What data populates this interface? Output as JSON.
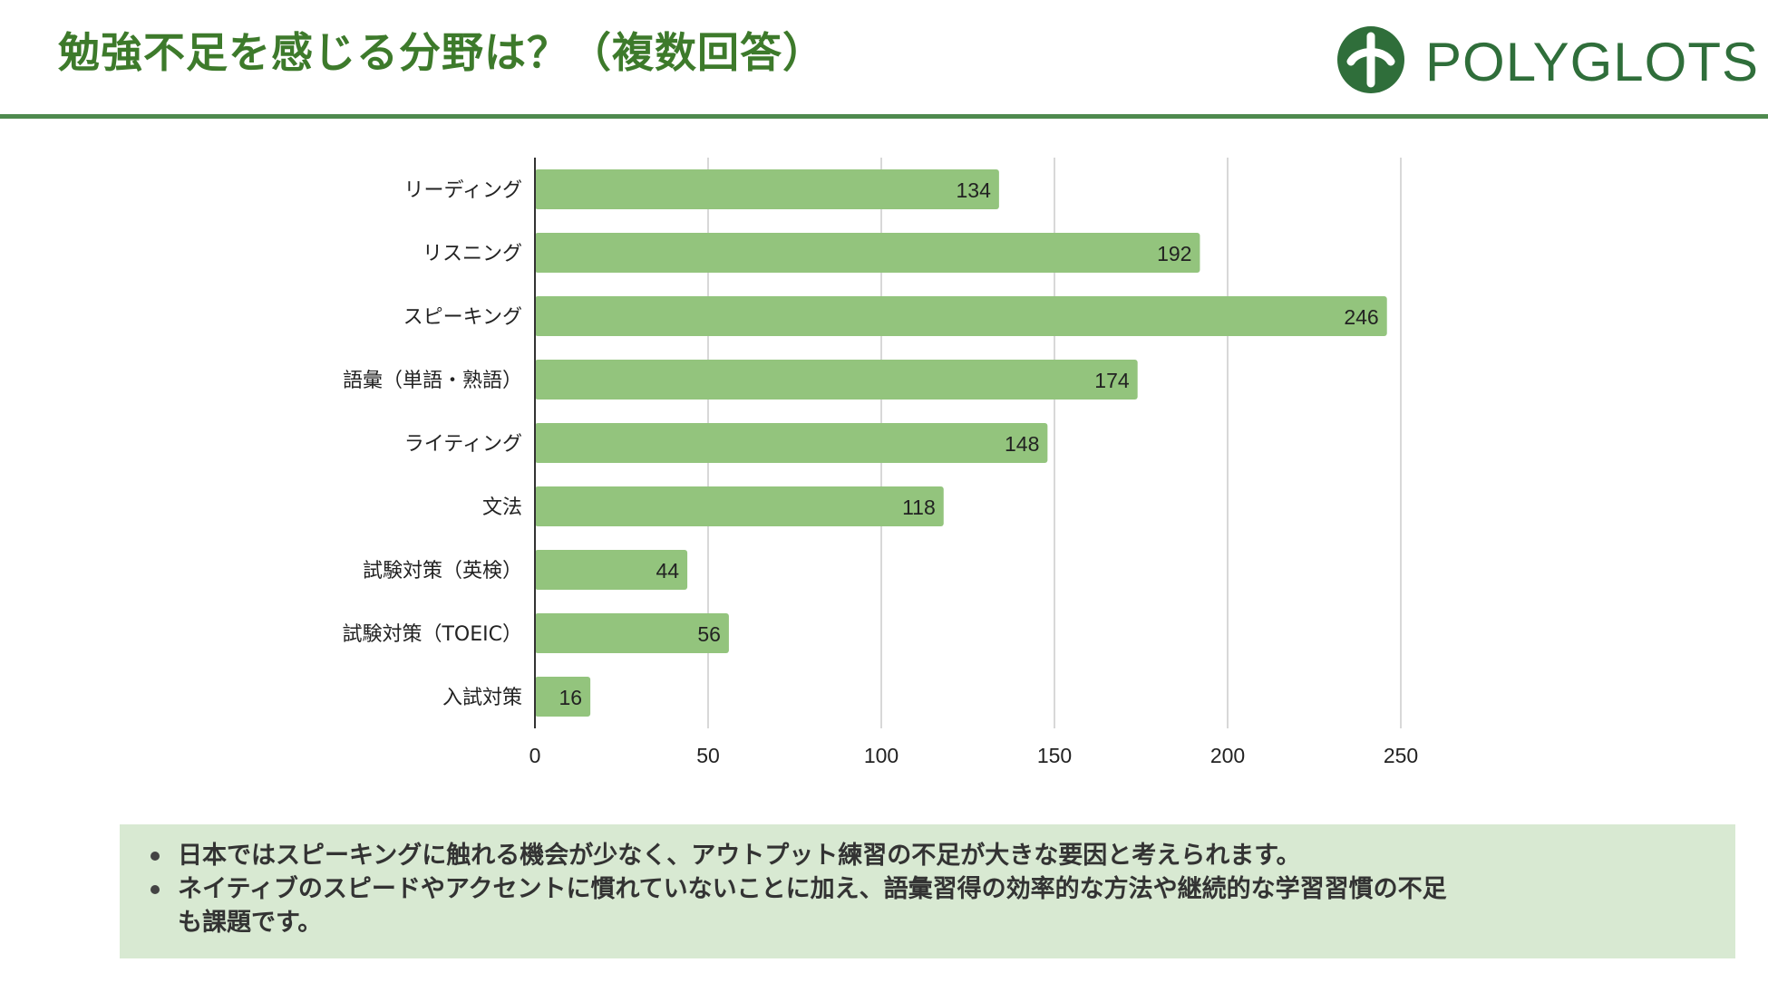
{
  "header": {
    "title": "勉強不足を感じる分野は？（複数回答）",
    "logo_text": "POLYGLOTS"
  },
  "colors": {
    "accent": "#3d7a2b",
    "bar": "#93c47d",
    "rule": "#4e8a4e",
    "note_bg": "#d8e9d2"
  },
  "chart_data": {
    "type": "bar",
    "orientation": "horizontal",
    "categories": [
      "リーディング",
      "リスニング",
      "スピーキング",
      "語彙（単語・熟語）",
      "ライティング",
      "文法",
      "試験対策（英検）",
      "試験対策（TOEIC）",
      "入試対策"
    ],
    "values": [
      134,
      192,
      246,
      174,
      148,
      118,
      44,
      56,
      16
    ],
    "xlim": [
      0,
      250
    ],
    "xticks": [
      0,
      50,
      100,
      150,
      200,
      250
    ],
    "grid": true,
    "data_labels": true
  },
  "notes": [
    "日本ではスピーキングに触れる機会が少なく、アウトプット練習の不足が大きな要因と考えられます。",
    "ネイティブのスピードやアクセントに慣れていないことに加え、語彙習得の効率的な方法や継続的な学習習慣の不足も課題です。"
  ]
}
